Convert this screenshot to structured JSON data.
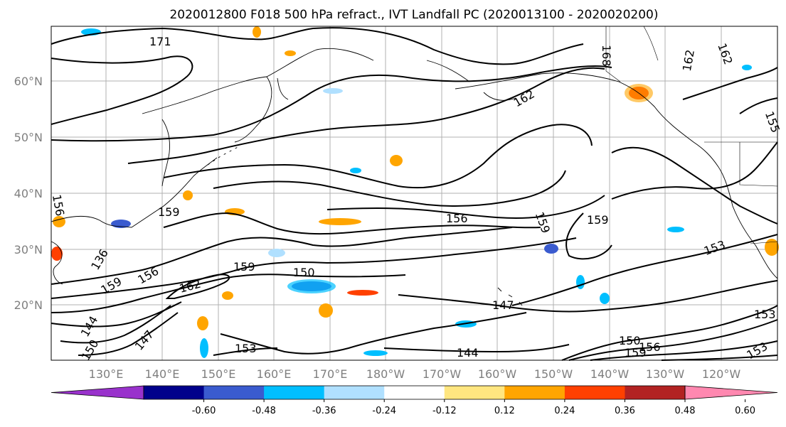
{
  "title": "2020012800 F018 500 hPa refract., IVT Landfall PC (2020013100 - 2020020200)",
  "lat_labels": [
    "60°N",
    "50°N",
    "40°N",
    "30°N",
    "20°N"
  ],
  "lon_labels": [
    "130°E",
    "140°E",
    "150°E",
    "160°E",
    "170°E",
    "180°W",
    "170°W",
    "160°W",
    "150°W",
    "140°W",
    "130°W",
    "120°W"
  ],
  "contour_labels": [
    "171",
    "168",
    "162",
    "162",
    "159",
    "159",
    "156",
    "156",
    "159",
    "153",
    "150",
    "159",
    "162",
    "150",
    "159",
    "156",
    "147",
    "144",
    "153",
    "150",
    "159",
    "156",
    "153",
    "153",
    "144",
    "147",
    "136",
    "162",
    "155"
  ],
  "colorbar": {
    "tick_labels": [
      "-0.60",
      "-0.48",
      "-0.36",
      "-0.24",
      "-0.12",
      "0.12",
      "0.24",
      "0.36",
      "0.48",
      "0.60"
    ],
    "colors": [
      "#9932cc",
      "#00008b",
      "#3a5bcf",
      "#00bfff",
      "#b0e0ff",
      "#ffffff",
      "#ffe680",
      "#ffa500",
      "#ff4000",
      "#b22222",
      "#ff88b0"
    ]
  }
}
